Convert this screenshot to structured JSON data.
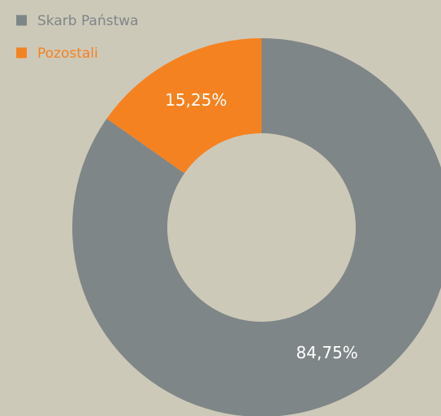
{
  "chart_data": {
    "type": "donut",
    "categories": [
      "Skarb Państwa",
      "Pozostali"
    ],
    "values": [
      84.75,
      15.25
    ],
    "value_labels": [
      "84,75%",
      "15,25%"
    ],
    "colors": [
      "#7f8687",
      "#f58220"
    ],
    "legend": "top-left"
  }
}
